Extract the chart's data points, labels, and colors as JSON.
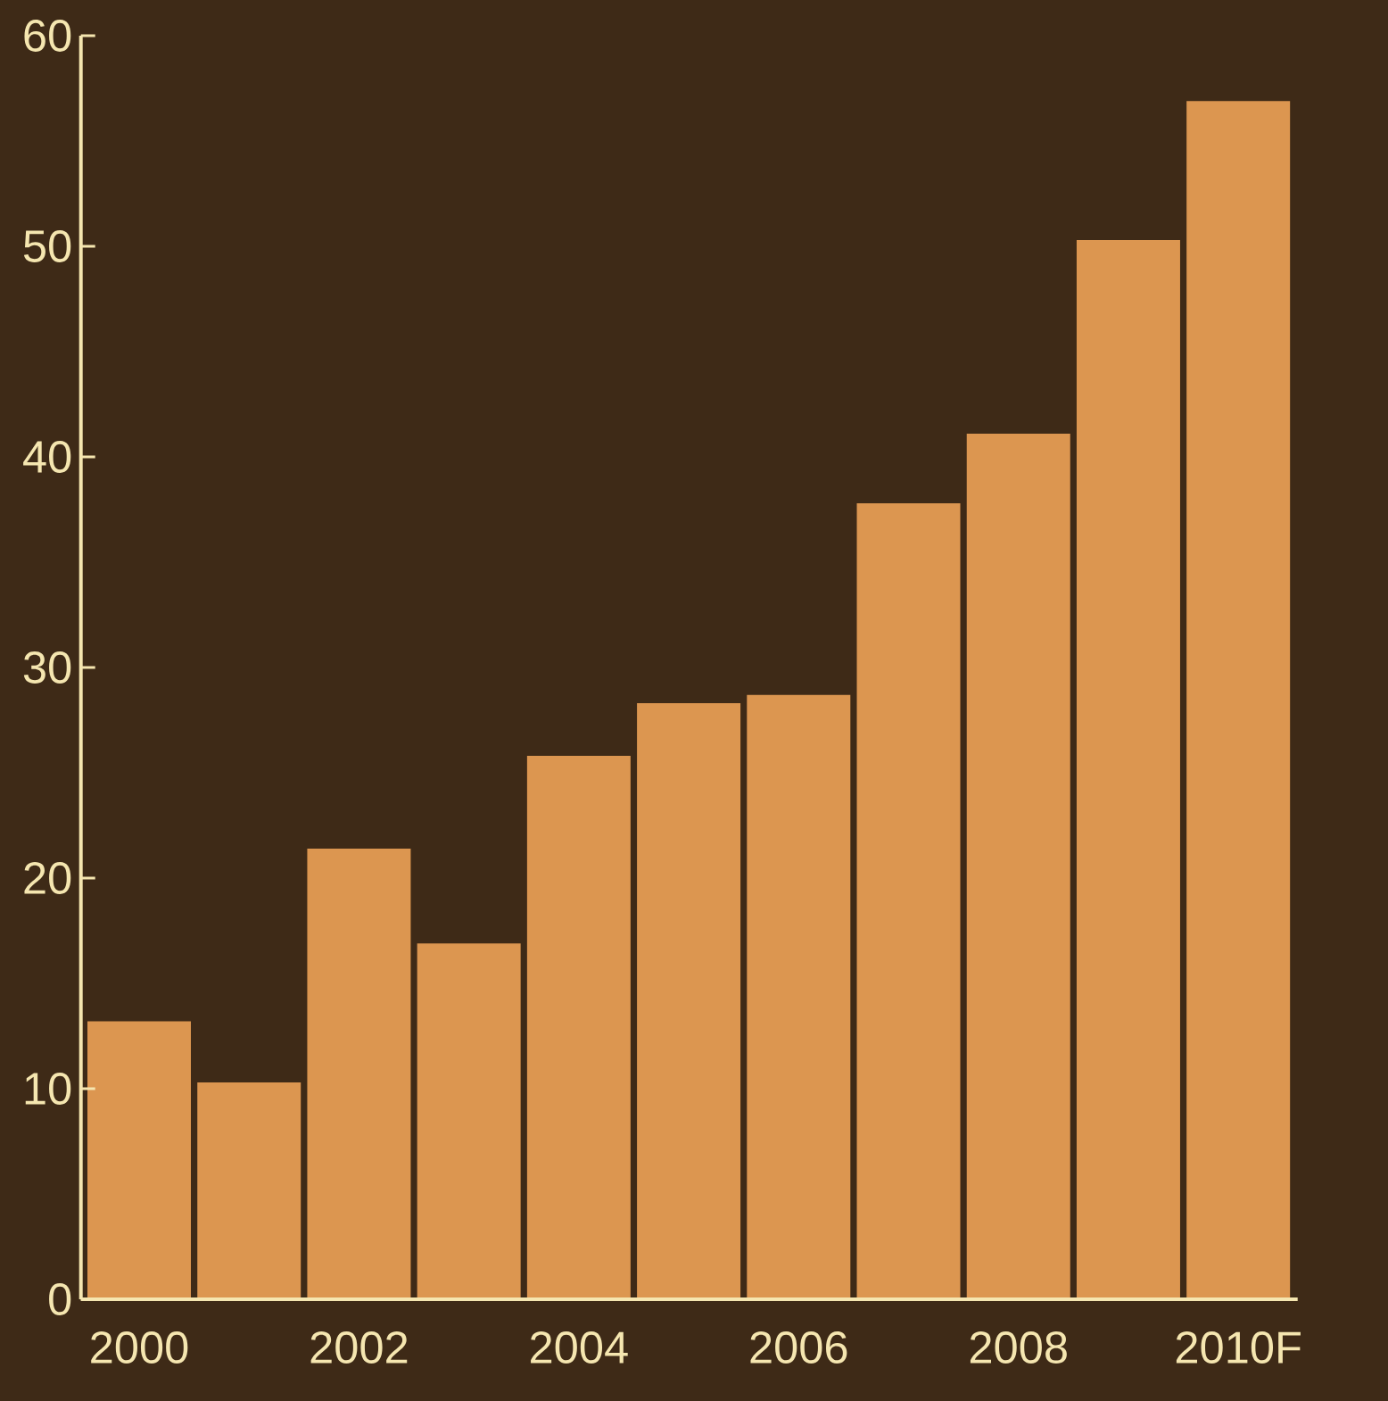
{
  "chart_data": {
    "type": "bar",
    "categories": [
      "2000",
      null,
      "2002",
      null,
      "2004",
      null,
      "2006",
      null,
      "2008",
      null,
      "2010F"
    ],
    "values": [
      13.2,
      10.3,
      21.4,
      16.9,
      25.8,
      28.3,
      28.7,
      37.8,
      41.1,
      50.3,
      56.9
    ],
    "color": "#dc9650",
    "ylim": [
      0,
      60
    ],
    "yticks": [
      0,
      10,
      20,
      30,
      40,
      50,
      60
    ],
    "grid": false
  }
}
